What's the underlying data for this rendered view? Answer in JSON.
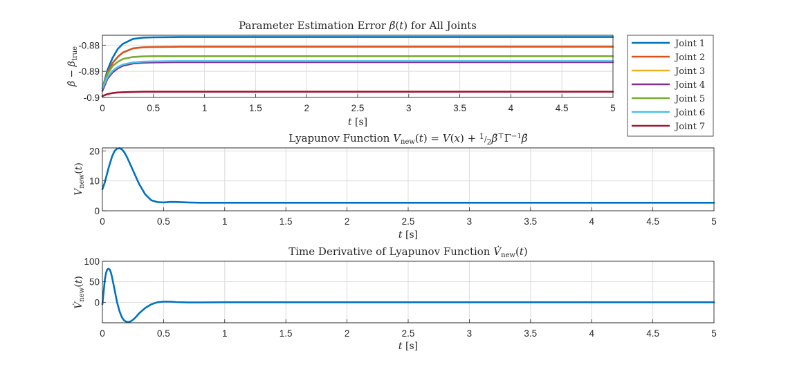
{
  "chart_data": [
    {
      "type": "line",
      "title": "Parameter Estimation Error β̃(t) for All Joints",
      "xlabel": "t [s]",
      "ylabel": "β̂ − β_true",
      "xlim": [
        0,
        5
      ],
      "ylim": [
        -0.9,
        -0.8762
      ],
      "xticks": [
        0,
        0.5,
        1,
        1.5,
        2,
        2.5,
        3,
        3.5,
        4,
        4.5,
        5
      ],
      "xtick_labels": [
        "0",
        "0.5",
        "1",
        "1.5",
        "2",
        "2.5",
        "3",
        "3.5",
        "4",
        "4.5",
        "5"
      ],
      "yticks": [
        -0.9,
        -0.89,
        -0.88
      ],
      "ytick_labels": [
        "-0.9",
        "-0.89",
        "-0.88"
      ],
      "grid": true,
      "legend_position": "outside-right",
      "series": [
        {
          "name": "Joint 1",
          "color": "#0072BD",
          "x": [
            0,
            0.05,
            0.1,
            0.15,
            0.2,
            0.3,
            0.4,
            0.5,
            0.75,
            1,
            5
          ],
          "y": [
            -0.8965,
            -0.8895,
            -0.8848,
            -0.8815,
            -0.8795,
            -0.8776,
            -0.8771,
            -0.877,
            -0.8769,
            -0.8769,
            -0.8769
          ]
        },
        {
          "name": "Joint 2",
          "color": "#D95319",
          "x": [
            0,
            0.05,
            0.1,
            0.15,
            0.2,
            0.3,
            0.4,
            0.5,
            0.75,
            1,
            5
          ],
          "y": [
            -0.8965,
            -0.8905,
            -0.8868,
            -0.8845,
            -0.8828,
            -0.8812,
            -0.8808,
            -0.8807,
            -0.8806,
            -0.8806,
            -0.8806
          ]
        },
        {
          "name": "Joint 3",
          "color": "#EDB120",
          "x": [
            0,
            0.05,
            0.1,
            0.15,
            0.2,
            0.3,
            0.4,
            0.5,
            0.75,
            1,
            5
          ],
          "y": [
            -0.8965,
            -0.8925,
            -0.8901,
            -0.8887,
            -0.8876,
            -0.8868,
            -0.8865,
            -0.8864,
            -0.8863,
            -0.8863,
            -0.8863
          ]
        },
        {
          "name": "Joint 4",
          "color": "#7E2F8E",
          "x": [
            0,
            0.05,
            0.1,
            0.15,
            0.2,
            0.3,
            0.4,
            0.5,
            0.75,
            1,
            5
          ],
          "y": [
            -0.8975,
            -0.8928,
            -0.8904,
            -0.8889,
            -0.8879,
            -0.887,
            -0.8867,
            -0.8866,
            -0.8865,
            -0.8865,
            -0.8865
          ]
        },
        {
          "name": "Joint 5",
          "color": "#77AC30",
          "x": [
            0,
            0.05,
            0.1,
            0.15,
            0.2,
            0.3,
            0.4,
            0.5,
            0.75,
            1,
            5
          ],
          "y": [
            -0.8965,
            -0.891,
            -0.888,
            -0.8864,
            -0.8853,
            -0.8845,
            -0.8843,
            -0.8842,
            -0.8842,
            -0.8842,
            -0.8842
          ]
        },
        {
          "name": "Joint 6",
          "color": "#4DBEEE",
          "x": [
            0,
            0.05,
            0.1,
            0.15,
            0.2,
            0.3,
            0.4,
            0.5,
            0.75,
            1,
            5
          ],
          "y": [
            -0.8965,
            -0.8922,
            -0.8898,
            -0.8884,
            -0.8874,
            -0.8866,
            -0.8863,
            -0.8862,
            -0.8861,
            -0.8861,
            -0.8861
          ]
        },
        {
          "name": "Joint 7",
          "color": "#A2142F",
          "x": [
            0,
            0.05,
            0.1,
            0.15,
            0.2,
            0.3,
            0.4,
            0.5,
            0.75,
            1,
            5
          ],
          "y": [
            -0.8995,
            -0.8987,
            -0.8983,
            -0.8981,
            -0.898,
            -0.8979,
            -0.8978,
            -0.8978,
            -0.8978,
            -0.8978,
            -0.8978
          ]
        }
      ]
    },
    {
      "type": "line",
      "title": "Lyapunov Function V_new(t) = V(x) + ½ β̃ᵀ Γ⁻¹ β̃",
      "xlabel": "t [s]",
      "ylabel": "V_new(t)",
      "xlim": [
        0,
        5
      ],
      "ylim": [
        0,
        21
      ],
      "xticks": [
        0,
        0.5,
        1,
        1.5,
        2,
        2.5,
        3,
        3.5,
        4,
        4.5,
        5
      ],
      "xtick_labels": [
        "0",
        "0.5",
        "1",
        "1.5",
        "2",
        "2.5",
        "3",
        "3.5",
        "4",
        "4.5",
        "5"
      ],
      "yticks": [
        0,
        10,
        20
      ],
      "ytick_labels": [
        "0",
        "10",
        "20"
      ],
      "grid": true,
      "series": [
        {
          "color": "#0072BD",
          "x": [
            0,
            0.02,
            0.05,
            0.08,
            0.1,
            0.12,
            0.14,
            0.16,
            0.18,
            0.2,
            0.25,
            0.3,
            0.35,
            0.4,
            0.45,
            0.5,
            0.55,
            0.6,
            0.7,
            0.8,
            1,
            5
          ],
          "y": [
            7.2,
            9.5,
            14.2,
            18.2,
            20.0,
            20.8,
            20.9,
            20.5,
            19.5,
            18.0,
            13.5,
            9.0,
            5.5,
            3.5,
            2.9,
            2.8,
            2.95,
            2.95,
            2.8,
            2.7,
            2.7,
            2.7
          ]
        }
      ]
    },
    {
      "type": "line",
      "title": "Time Derivative of Lyapunov Function V̇_new(t)",
      "xlabel": "t [s]",
      "ylabel": "V̇_new(t)",
      "xlim": [
        0,
        5
      ],
      "ylim": [
        -50,
        100
      ],
      "xticks": [
        0,
        0.5,
        1,
        1.5,
        2,
        2.5,
        3,
        3.5,
        4,
        4.5,
        5
      ],
      "xtick_labels": [
        "0",
        "0.5",
        "1",
        "1.5",
        "2",
        "2.5",
        "3",
        "3.5",
        "4",
        "4.5",
        "5"
      ],
      "yticks": [
        0,
        50,
        100
      ],
      "ytick_labels": [
        "0",
        "50",
        "100"
      ],
      "grid": true,
      "series": [
        {
          "color": "#0072BD",
          "x": [
            0,
            0.01,
            0.02,
            0.03,
            0.04,
            0.05,
            0.06,
            0.07,
            0.08,
            0.1,
            0.12,
            0.14,
            0.16,
            0.18,
            0.2,
            0.22,
            0.24,
            0.26,
            0.28,
            0.3,
            0.35,
            0.4,
            0.45,
            0.5,
            0.55,
            0.6,
            0.7,
            0.8,
            1,
            5
          ],
          "y": [
            -5,
            25,
            55,
            72,
            80,
            82,
            80,
            72,
            60,
            30,
            0,
            -22,
            -37,
            -45,
            -48,
            -48,
            -45,
            -40,
            -34,
            -27,
            -14,
            -5,
            0,
            1.5,
            1.5,
            0.5,
            -0.5,
            -0.5,
            0,
            0
          ]
        }
      ]
    }
  ]
}
